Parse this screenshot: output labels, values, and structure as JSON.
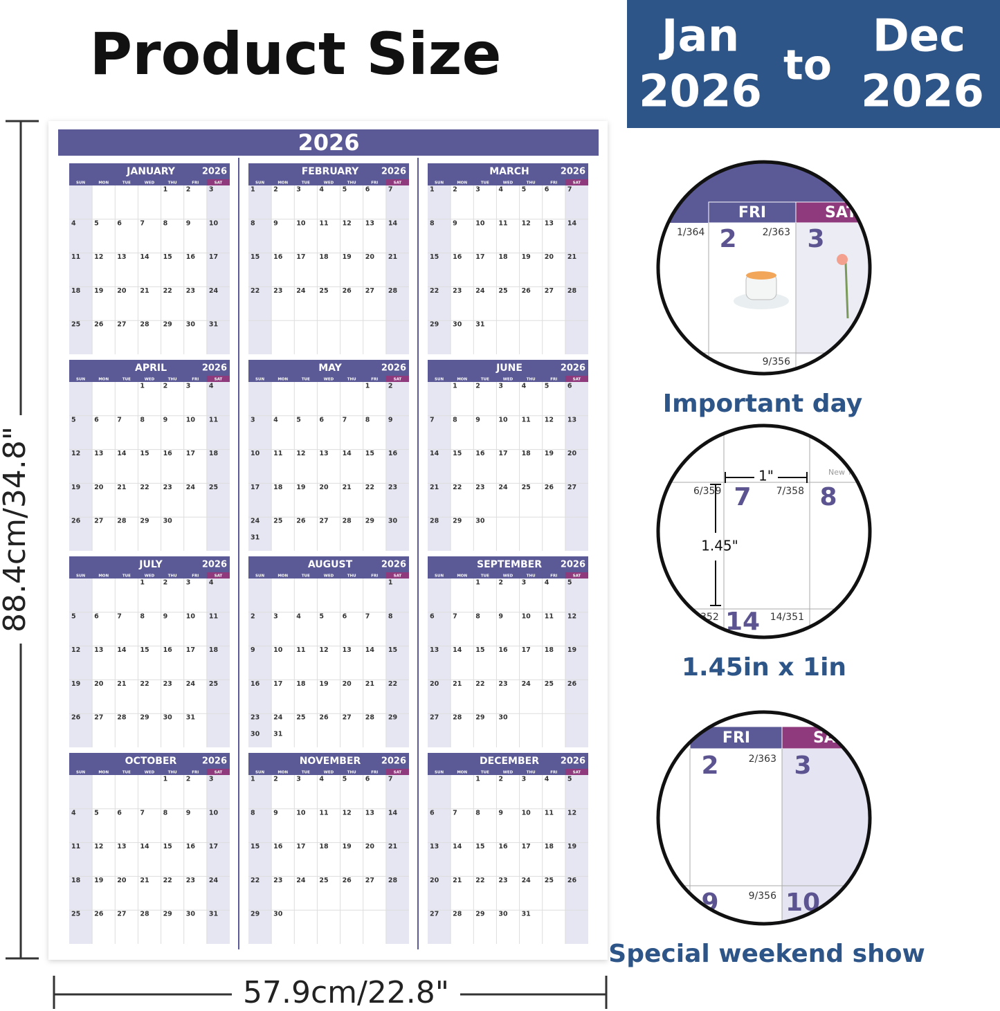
{
  "header": {
    "title": "Product Size"
  },
  "banner": {
    "start_month": "Jan",
    "start_year": "2026",
    "connector": "to",
    "end_month": "Dec",
    "end_year": "2026"
  },
  "dimensions": {
    "height": "88.4cm/34.8\"",
    "width": "57.9cm/22.8\""
  },
  "calendar": {
    "year": "2026",
    "weekdays": [
      "SUN",
      "MON",
      "TUE",
      "WED",
      "THU",
      "FRI",
      "SAT"
    ],
    "months": [
      {
        "name": "JANUARY",
        "year": "2026",
        "days": [
          null,
          null,
          null,
          null,
          1,
          2,
          3,
          4,
          5,
          6,
          7,
          8,
          9,
          10,
          11,
          12,
          13,
          14,
          15,
          16,
          17,
          18,
          19,
          20,
          21,
          22,
          23,
          24,
          25,
          26,
          27,
          28,
          29,
          30,
          31
        ]
      },
      {
        "name": "FEBRUARY",
        "year": "2026",
        "days": [
          1,
          2,
          3,
          4,
          5,
          6,
          7,
          8,
          9,
          10,
          11,
          12,
          13,
          14,
          15,
          16,
          17,
          18,
          19,
          20,
          21,
          22,
          23,
          24,
          25,
          26,
          27,
          28
        ]
      },
      {
        "name": "MARCH",
        "year": "2026",
        "days": [
          1,
          2,
          3,
          4,
          5,
          6,
          7,
          8,
          9,
          10,
          11,
          12,
          13,
          14,
          15,
          16,
          17,
          18,
          19,
          20,
          21,
          22,
          23,
          24,
          25,
          26,
          27,
          28,
          29,
          30,
          31
        ]
      },
      {
        "name": "APRIL",
        "year": "2026",
        "days": [
          null,
          null,
          null,
          1,
          2,
          3,
          4,
          5,
          6,
          7,
          8,
          9,
          10,
          11,
          12,
          13,
          14,
          15,
          16,
          17,
          18,
          19,
          20,
          21,
          22,
          23,
          24,
          25,
          26,
          27,
          28,
          29,
          30
        ]
      },
      {
        "name": "MAY",
        "year": "2026",
        "days": [
          null,
          null,
          null,
          null,
          null,
          1,
          2,
          3,
          4,
          5,
          6,
          7,
          8,
          9,
          10,
          11,
          12,
          13,
          14,
          15,
          16,
          17,
          18,
          19,
          20,
          21,
          22,
          23,
          24,
          25,
          26,
          27,
          28,
          29,
          30,
          31
        ]
      },
      {
        "name": "JUNE",
        "year": "2026",
        "days": [
          null,
          1,
          2,
          3,
          4,
          5,
          6,
          7,
          8,
          9,
          10,
          11,
          12,
          13,
          14,
          15,
          16,
          17,
          18,
          19,
          20,
          21,
          22,
          23,
          24,
          25,
          26,
          27,
          28,
          29,
          30
        ]
      },
      {
        "name": "JULY",
        "year": "2026",
        "days": [
          null,
          null,
          null,
          1,
          2,
          3,
          4,
          5,
          6,
          7,
          8,
          9,
          10,
          11,
          12,
          13,
          14,
          15,
          16,
          17,
          18,
          19,
          20,
          21,
          22,
          23,
          24,
          25,
          26,
          27,
          28,
          29,
          30,
          31
        ]
      },
      {
        "name": "AUGUST",
        "year": "2026",
        "days": [
          null,
          null,
          null,
          null,
          null,
          null,
          1,
          2,
          3,
          4,
          5,
          6,
          7,
          8,
          9,
          10,
          11,
          12,
          13,
          14,
          15,
          16,
          17,
          18,
          19,
          20,
          21,
          22,
          23,
          24,
          25,
          26,
          27,
          28,
          29,
          30,
          31
        ]
      },
      {
        "name": "SEPTEMBER",
        "year": "2026",
        "days": [
          null,
          null,
          1,
          2,
          3,
          4,
          5,
          6,
          7,
          8,
          9,
          10,
          11,
          12,
          13,
          14,
          15,
          16,
          17,
          18,
          19,
          20,
          21,
          22,
          23,
          24,
          25,
          26,
          27,
          28,
          29,
          30
        ]
      },
      {
        "name": "OCTOBER",
        "year": "2026",
        "days": [
          null,
          null,
          null,
          null,
          1,
          2,
          3,
          4,
          5,
          6,
          7,
          8,
          9,
          10,
          11,
          12,
          13,
          14,
          15,
          16,
          17,
          18,
          19,
          20,
          21,
          22,
          23,
          24,
          25,
          26,
          27,
          28,
          29,
          30,
          31
        ]
      },
      {
        "name": "NOVEMBER",
        "year": "2026",
        "days": [
          1,
          2,
          3,
          4,
          5,
          6,
          7,
          8,
          9,
          10,
          11,
          12,
          13,
          14,
          15,
          16,
          17,
          18,
          19,
          20,
          21,
          22,
          23,
          24,
          25,
          26,
          27,
          28,
          29,
          30
        ]
      },
      {
        "name": "DECEMBER",
        "year": "2026",
        "days": [
          null,
          null,
          1,
          2,
          3,
          4,
          5,
          6,
          7,
          8,
          9,
          10,
          11,
          12,
          13,
          14,
          15,
          16,
          17,
          18,
          19,
          20,
          21,
          22,
          23,
          24,
          25,
          26,
          27,
          28,
          29,
          30,
          31
        ]
      }
    ]
  },
  "zooms": [
    {
      "caption": "Important day",
      "headers": [
        "FRI",
        "SAT"
      ],
      "texts": [
        "1/364",
        "2",
        "2/363",
        "3",
        "9/356"
      ]
    },
    {
      "caption": "1.45in x 1in",
      "texts": [
        "6/359",
        "7",
        "7/358",
        "8",
        "New Y",
        "1\"",
        "1.45\"",
        "352",
        "14",
        "14/351"
      ]
    },
    {
      "caption": "Special weekend show",
      "headers": [
        "FRI",
        "SA"
      ],
      "texts": [
        "2",
        "2/363",
        "3",
        "9/356",
        "9",
        "10"
      ]
    }
  ]
}
